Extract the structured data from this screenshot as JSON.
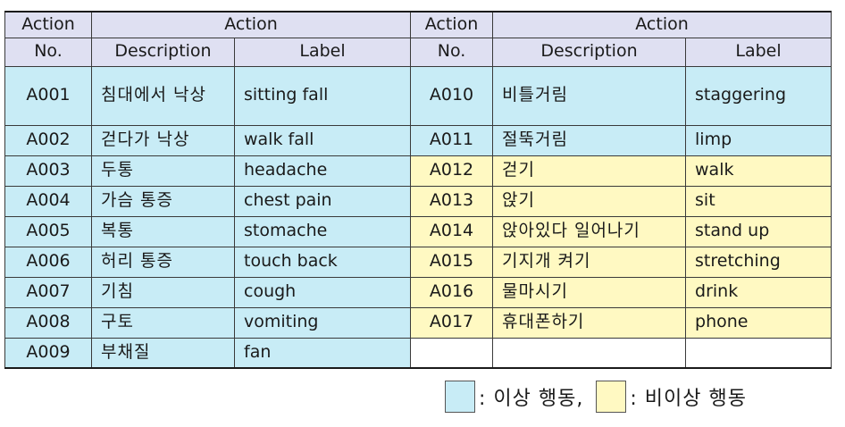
{
  "header": {
    "no_top": "Action",
    "no_bottom": "No.",
    "action": "Action",
    "description": "Description",
    "label": "Label"
  },
  "left_rows": [
    {
      "no": "A001",
      "description": "침대에서 낙상",
      "label": "sitting fall"
    },
    {
      "no": "A002",
      "description": "걷다가 낙상",
      "label": "walk fall"
    },
    {
      "no": "A003",
      "description": "두통",
      "label": "headache"
    },
    {
      "no": "A004",
      "description": "가슴 통증",
      "label": "chest pain"
    },
    {
      "no": "A005",
      "description": "복통",
      "label": "stomache"
    },
    {
      "no": "A006",
      "description": "허리 통증",
      "label": "touch back"
    },
    {
      "no": "A007",
      "description": "기침",
      "label": "cough"
    },
    {
      "no": "A008",
      "description": "구토",
      "label": "vomiting"
    },
    {
      "no": "A009",
      "description": "부채질",
      "label": "fan"
    }
  ],
  "right_rows": [
    {
      "no": "A010",
      "description": "비틀거림",
      "label": "staggering"
    },
    {
      "no": "A011",
      "description": "절뚝거림",
      "label": "limp"
    },
    {
      "no": "A012",
      "description": "걷기",
      "label": "walk"
    },
    {
      "no": "A013",
      "description": "앉기",
      "label": "sit"
    },
    {
      "no": "A014",
      "description": "앉아있다 일어나기",
      "label": "stand up"
    },
    {
      "no": "A015",
      "description": "기지개 켜기",
      "label": "stretching"
    },
    {
      "no": "A016",
      "description": "물마시기",
      "label": "drink"
    },
    {
      "no": "A017",
      "description": "휴대폰하기",
      "label": "phone"
    }
  ],
  "legend": {
    "abnormal_text": ": 이상 행동,",
    "normal_text": ": 비이상 행동"
  },
  "colors": {
    "abnormal": "#c8ecf6",
    "normal": "#fff9c2",
    "header": "#dfe0f2"
  }
}
